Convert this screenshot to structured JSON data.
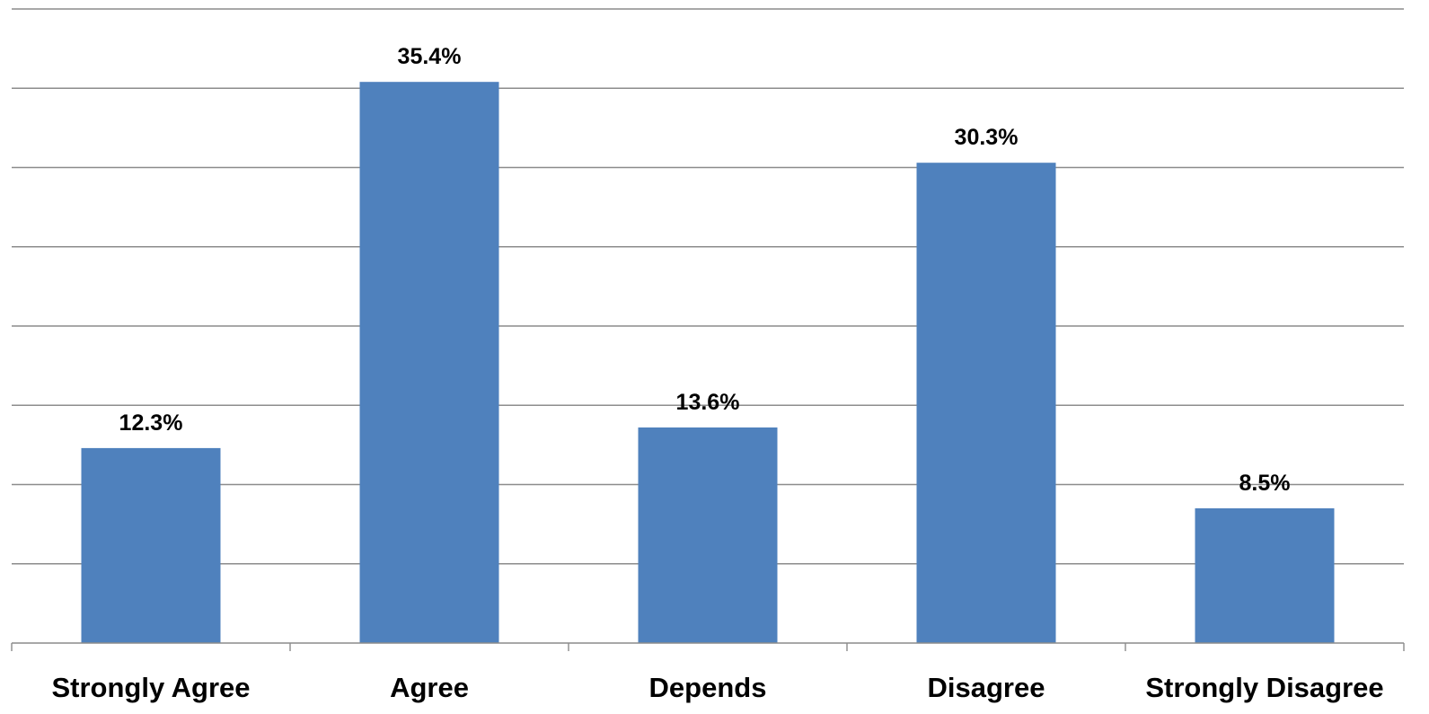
{
  "chart_data": {
    "type": "bar",
    "categories": [
      "Strongly Agree",
      "Agree",
      "Depends",
      "Disagree",
      "Strongly Disagree"
    ],
    "values": [
      12.3,
      35.4,
      13.6,
      30.3,
      8.5
    ],
    "data_labels": [
      "12.3%",
      "35.4%",
      "13.6%",
      "30.3%",
      "8.5%"
    ],
    "ylim": [
      0,
      40
    ],
    "ytick_step": 5,
    "grid": true,
    "legend": "none",
    "bar_color": "#4f81bd",
    "grid_color": "#8c8c8c"
  }
}
